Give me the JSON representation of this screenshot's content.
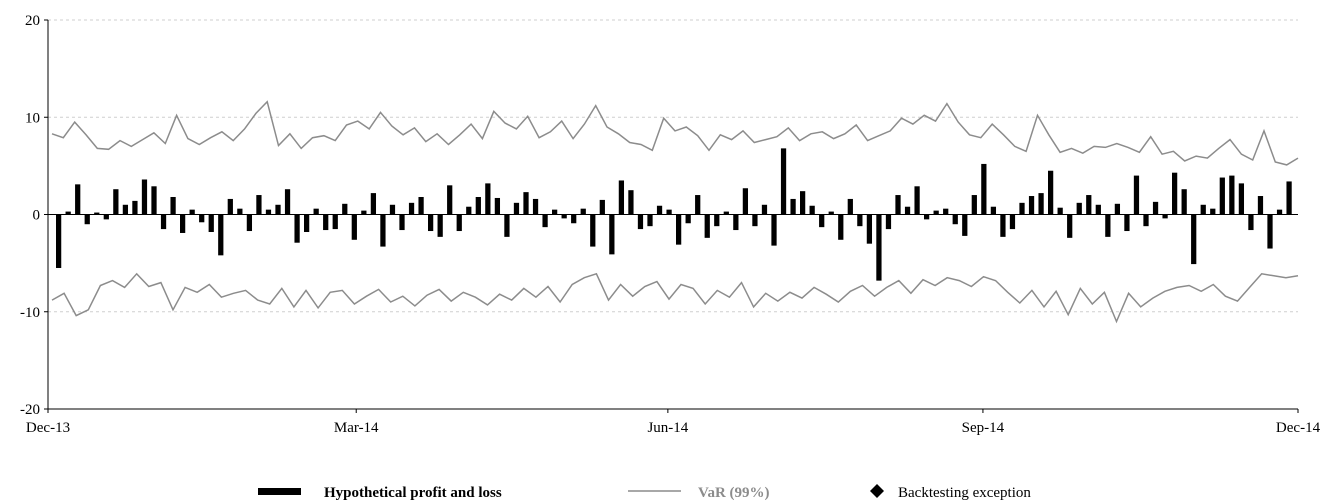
{
  "chart_data": {
    "type": "bar",
    "title": "",
    "xlabel": "",
    "ylabel": "",
    "ylim": [
      -20,
      20
    ],
    "yticks": [
      -20,
      -10,
      0,
      10,
      20
    ],
    "ytick_labels": [
      "-20",
      "-10",
      "0",
      "10",
      "20"
    ],
    "x_start": "2013-12-31",
    "x_end": "2014-12-31",
    "xticks": [
      {
        "date": "2013-12-31",
        "label": "Dec-13"
      },
      {
        "date": "2014-03-31",
        "label": "Mar-14"
      },
      {
        "date": "2014-06-30",
        "label": "Jun-14"
      },
      {
        "date": "2014-09-30",
        "label": "Sep-14"
      },
      {
        "date": "2014-12-31",
        "label": "Dec-14"
      }
    ],
    "grid": true,
    "legend_position": "bottom",
    "series": [
      {
        "name": "Hypothetical profit and loss",
        "type": "bar",
        "color": "#000000",
        "values": [
          -5.5,
          0.3,
          3.1,
          -1.0,
          0.2,
          -0.5,
          2.6,
          1.0,
          1.4,
          3.6,
          2.9,
          -1.5,
          1.8,
          -1.9,
          0.5,
          -0.8,
          -1.8,
          -4.2,
          1.6,
          0.6,
          -1.7,
          2.0,
          0.5,
          1.0,
          2.6,
          -2.9,
          -1.8,
          0.6,
          -1.6,
          -1.5,
          1.1,
          -2.6,
          0.4,
          2.2,
          -3.3,
          1.0,
          -1.6,
          1.2,
          1.8,
          -1.7,
          -2.3,
          3.0,
          -1.7,
          0.8,
          1.8,
          3.2,
          1.7,
          -2.3,
          1.2,
          2.3,
          1.6,
          -1.3,
          0.5,
          -0.4,
          -0.9,
          0.6,
          -3.3,
          1.5,
          -4.1,
          3.5,
          2.5,
          -1.5,
          -1.2,
          0.9,
          0.5,
          -3.1,
          -0.9,
          2.0,
          -2.4,
          -1.2,
          0.3,
          -1.6,
          2.7,
          -1.2,
          1.0,
          -3.2,
          6.8,
          1.6,
          2.4,
          0.9,
          -1.3,
          0.3,
          -2.6,
          1.6,
          -1.2,
          -3.0,
          -6.8,
          -1.5,
          2.0,
          0.8,
          2.9,
          -0.5,
          0.4,
          0.6,
          -1.0,
          -2.2,
          2.0,
          5.2,
          0.8,
          -2.3,
          -1.5,
          1.2,
          1.9,
          2.2,
          4.5,
          0.7,
          -2.4,
          1.2,
          2.0,
          1.0,
          -2.3,
          1.1,
          -1.7,
          4.0,
          -1.2,
          1.3,
          -0.4,
          4.3,
          2.6,
          -5.1,
          1.0,
          0.6,
          3.8,
          4.0,
          3.2,
          -1.6,
          1.9,
          -3.5,
          0.5,
          3.4
        ]
      },
      {
        "name": "VaR (99%)",
        "type": "band",
        "color": "#8c8c8c",
        "upper": [
          8.3,
          7.9,
          9.5,
          8.2,
          6.8,
          6.7,
          7.6,
          7.0,
          7.7,
          8.4,
          7.3,
          10.2,
          7.8,
          7.2,
          7.9,
          8.5,
          7.6,
          8.8,
          10.4,
          11.6,
          7.1,
          8.3,
          6.8,
          7.9,
          8.1,
          7.6,
          9.2,
          9.6,
          8.8,
          10.5,
          9.1,
          8.2,
          8.9,
          7.5,
          8.3,
          7.2,
          8.2,
          9.3,
          7.8,
          10.6,
          9.4,
          8.8,
          10.1,
          7.9,
          8.5,
          9.6,
          7.8,
          9.3,
          11.2,
          9.0,
          8.3,
          7.4,
          7.2,
          6.6,
          9.9,
          8.6,
          9.0,
          8.1,
          6.6,
          8.2,
          7.7,
          8.6,
          7.4,
          7.7,
          8.0,
          8.9,
          7.6,
          8.3,
          8.5,
          7.8,
          8.3,
          9.2,
          7.6,
          8.1,
          8.6,
          9.9,
          9.3,
          10.2,
          9.6,
          11.4,
          9.5,
          8.2,
          7.9,
          9.3,
          8.2,
          7.0,
          6.5,
          10.2,
          8.2,
          6.4,
          6.8,
          6.3,
          7.0,
          6.9,
          7.3,
          6.9,
          6.4,
          8.0,
          6.2,
          6.5,
          5.5,
          6.0,
          5.8,
          6.8,
          7.7,
          6.2,
          5.6,
          8.6,
          5.4,
          5.1,
          5.8
        ]
      },
      {
        "name": "VaR (99%) lower",
        "type": "band",
        "color": "#8c8c8c",
        "lower": [
          -8.8,
          -8.1,
          -10.4,
          -9.8,
          -7.3,
          -6.8,
          -7.5,
          -6.1,
          -7.4,
          -7.0,
          -9.8,
          -7.5,
          -8.0,
          -7.2,
          -8.5,
          -8.1,
          -7.8,
          -8.8,
          -9.2,
          -7.6,
          -9.5,
          -7.8,
          -9.6,
          -8.0,
          -7.8,
          -9.2,
          -8.4,
          -7.7,
          -9.0,
          -8.4,
          -9.4,
          -8.3,
          -7.7,
          -8.9,
          -8.0,
          -8.5,
          -9.3,
          -8.2,
          -8.8,
          -7.6,
          -8.5,
          -7.4,
          -9.0,
          -7.2,
          -6.5,
          -6.1,
          -8.8,
          -7.2,
          -8.4,
          -7.4,
          -6.9,
          -8.7,
          -7.2,
          -7.6,
          -9.2,
          -7.8,
          -8.5,
          -7.0,
          -9.5,
          -8.1,
          -8.9,
          -8.0,
          -8.6,
          -7.5,
          -8.2,
          -9.0,
          -7.9,
          -7.3,
          -8.4,
          -7.5,
          -6.8,
          -8.1,
          -6.7,
          -7.3,
          -6.5,
          -6.8,
          -7.4,
          -6.4,
          -6.8,
          -8.0,
          -9.1,
          -7.8,
          -9.5,
          -7.9,
          -10.3,
          -7.6,
          -9.2,
          -8.0,
          -11.0,
          -8.1,
          -9.5,
          -8.6,
          -7.9,
          -7.5,
          -7.3,
          -7.9,
          -7.2,
          -8.4,
          -8.9,
          -7.5,
          -6.1,
          -6.3,
          -6.5,
          -6.3
        ]
      },
      {
        "name": "Backtesting exception",
        "type": "marker",
        "color": "#000000",
        "values": []
      }
    ]
  },
  "legend": {
    "pnl_label": "Hypothetical profit and loss",
    "var_label": "VaR (99%)",
    "exception_label": "Backtesting exception"
  }
}
